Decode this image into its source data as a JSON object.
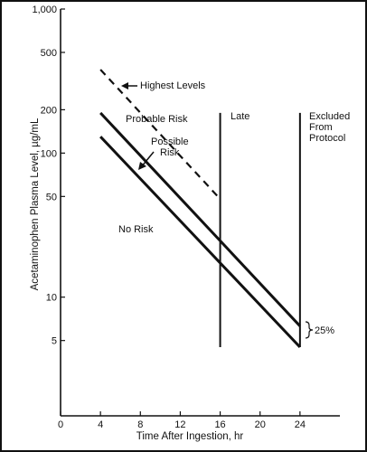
{
  "chart_data": {
    "type": "line",
    "xlabel": "Time After Ingestion, hr",
    "ylabel": "Acetaminophen Plasma Level, µg/mL",
    "x_scale": "linear",
    "y_scale": "log",
    "xlim": [
      0,
      28
    ],
    "ylim": [
      1.5,
      1000
    ],
    "x_ticks": [
      0,
      4,
      8,
      12,
      16,
      20,
      24
    ],
    "x_tick_labels": [
      "0",
      "4",
      "8",
      "12",
      "16",
      "20",
      "24"
    ],
    "y_ticks": [
      5,
      10,
      50,
      100,
      200,
      500,
      1000
    ],
    "y_tick_labels": [
      "5",
      "10",
      "50",
      "100",
      "200",
      "500",
      "1,000"
    ],
    "series": [
      {
        "name": "Highest Levels",
        "style": "dashed",
        "x": [
          4,
          16
        ],
        "y": [
          380,
          48
        ]
      },
      {
        "name": "Probable Risk",
        "style": "solid",
        "x": [
          4,
          24
        ],
        "y": [
          190,
          6.3
        ]
      },
      {
        "name": "Possible Risk",
        "style": "solid",
        "x": [
          4,
          24
        ],
        "y": [
          130,
          4.5
        ]
      }
    ],
    "vertical_lines": [
      {
        "label": "Late",
        "x": 16,
        "y_range": [
          4.5,
          190
        ]
      },
      {
        "label": "Excluded From Protocol",
        "x": 24,
        "y_range": [
          4.5,
          190
        ]
      }
    ],
    "annotations": {
      "highest_levels": "Highest Levels",
      "probable_risk": "Probable Risk",
      "possible_risk": "Possible Risk",
      "no_risk": "No Risk",
      "late": "Late",
      "excluded_lines": [
        "Excluded",
        "From",
        "Protocol"
      ],
      "percent": "25%"
    }
  }
}
